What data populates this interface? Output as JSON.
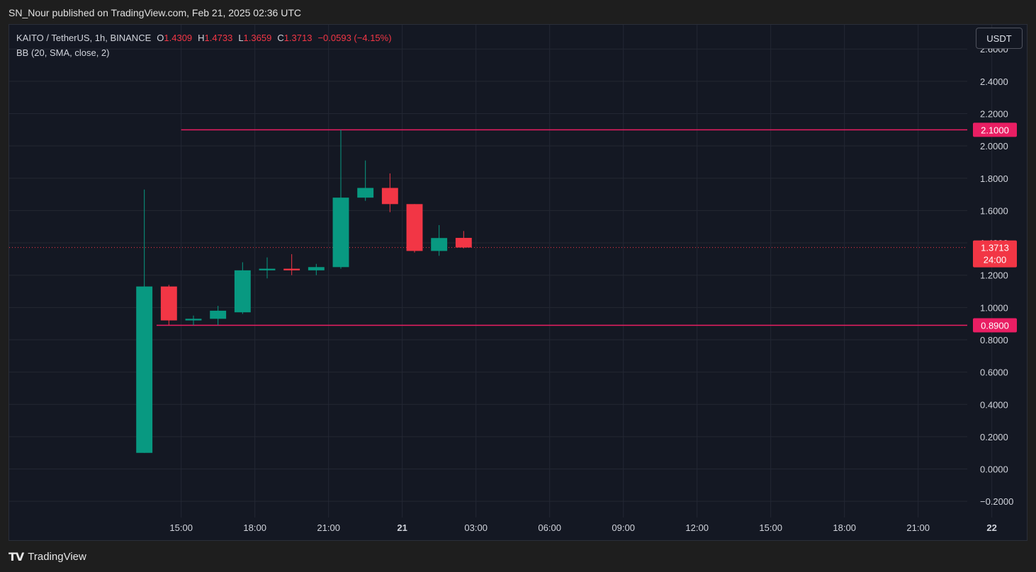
{
  "header": {
    "publish_text": "SN_Nour published on TradingView.com, Feb 21, 2025 02:36 UTC"
  },
  "legend": {
    "symbol": "KAITO / TetherUS, 1h, BINANCE",
    "o_label": "O",
    "o_value": "1.4309",
    "h_label": "H",
    "h_value": "1.4733",
    "l_label": "L",
    "l_value": "1.3659",
    "c_label": "C",
    "c_value": "1.3713",
    "change": "−0.0593 (−4.15%)",
    "indicator": "BB (20, SMA, close, 2)"
  },
  "currency_button": "USDT",
  "footer": {
    "brand": "TradingView",
    "mark": "TV"
  },
  "colors": {
    "up": "#089981",
    "down": "#f23645",
    "line": "#e91e63",
    "grid": "#232733",
    "axis_text": "#d1d4dc"
  },
  "chart_data": {
    "type": "candlestick",
    "ylim": [
      -0.3,
      2.75
    ],
    "yticks": [
      {
        "value": 2.6,
        "label": "2.6000"
      },
      {
        "value": 2.4,
        "label": "2.4000"
      },
      {
        "value": 2.2,
        "label": "2.2000"
      },
      {
        "value": 2.0,
        "label": "2.0000"
      },
      {
        "value": 1.8,
        "label": "1.8000"
      },
      {
        "value": 1.6,
        "label": "1.6000"
      },
      {
        "value": 1.4,
        "label": "1.4000"
      },
      {
        "value": 1.2,
        "label": "1.2000"
      },
      {
        "value": 1.0,
        "label": "1.0000"
      },
      {
        "value": 0.8,
        "label": "0.8000"
      },
      {
        "value": 0.6,
        "label": "0.6000"
      },
      {
        "value": 0.4,
        "label": "0.4000"
      },
      {
        "value": 0.2,
        "label": "0.2000"
      },
      {
        "value": 0.0,
        "label": "0.0000"
      },
      {
        "value": -0.2,
        "label": "−0.2000"
      }
    ],
    "xlim": [
      8,
      47
    ],
    "xticks": [
      {
        "hour": 15,
        "label": "15:00"
      },
      {
        "hour": 18,
        "label": "18:00"
      },
      {
        "hour": 21,
        "label": "21:00"
      },
      {
        "hour": 24,
        "label": "21",
        "bold": true
      },
      {
        "hour": 27,
        "label": "03:00"
      },
      {
        "hour": 30,
        "label": "06:00"
      },
      {
        "hour": 33,
        "label": "09:00"
      },
      {
        "hour": 36,
        "label": "12:00"
      },
      {
        "hour": 39,
        "label": "15:00"
      },
      {
        "hour": 42,
        "label": "18:00"
      },
      {
        "hour": 45,
        "label": "21:00"
      },
      {
        "hour": 48,
        "label": "22",
        "bold": true
      }
    ],
    "candles": [
      {
        "hour": 13.5,
        "open": 0.1,
        "high": 1.73,
        "low": 0.1,
        "close": 1.13
      },
      {
        "hour": 14.5,
        "open": 1.13,
        "high": 1.14,
        "low": 0.89,
        "close": 0.92
      },
      {
        "hour": 15.5,
        "open": 0.92,
        "high": 0.95,
        "low": 0.89,
        "close": 0.93
      },
      {
        "hour": 16.5,
        "open": 0.93,
        "high": 1.01,
        "low": 0.89,
        "close": 0.98
      },
      {
        "hour": 17.5,
        "open": 0.97,
        "high": 1.28,
        "low": 0.96,
        "close": 1.23
      },
      {
        "hour": 18.5,
        "open": 1.23,
        "high": 1.31,
        "low": 1.18,
        "close": 1.24
      },
      {
        "hour": 19.5,
        "open": 1.24,
        "high": 1.33,
        "low": 1.2,
        "close": 1.23
      },
      {
        "hour": 20.5,
        "open": 1.23,
        "high": 1.27,
        "low": 1.2,
        "close": 1.25
      },
      {
        "hour": 21.5,
        "open": 1.25,
        "high": 2.1,
        "low": 1.24,
        "close": 1.68
      },
      {
        "hour": 22.5,
        "open": 1.68,
        "high": 1.91,
        "low": 1.66,
        "close": 1.74
      },
      {
        "hour": 23.5,
        "open": 1.74,
        "high": 1.83,
        "low": 1.59,
        "close": 1.64
      },
      {
        "hour": 24.5,
        "open": 1.64,
        "high": 1.64,
        "low": 1.34,
        "close": 1.35
      },
      {
        "hour": 25.5,
        "open": 1.35,
        "high": 1.51,
        "low": 1.32,
        "close": 1.43
      },
      {
        "hour": 26.5,
        "open": 1.4309,
        "high": 1.4733,
        "low": 1.3659,
        "close": 1.3713
      }
    ],
    "horizontal_lines": [
      {
        "value": 2.1,
        "label": "2.1000",
        "start_hour": 15
      },
      {
        "value": 0.89,
        "label": "0.8900",
        "start_hour": 14
      }
    ],
    "current_price": {
      "value": 1.3713,
      "label": "1.3713",
      "countdown": "24:00"
    }
  }
}
